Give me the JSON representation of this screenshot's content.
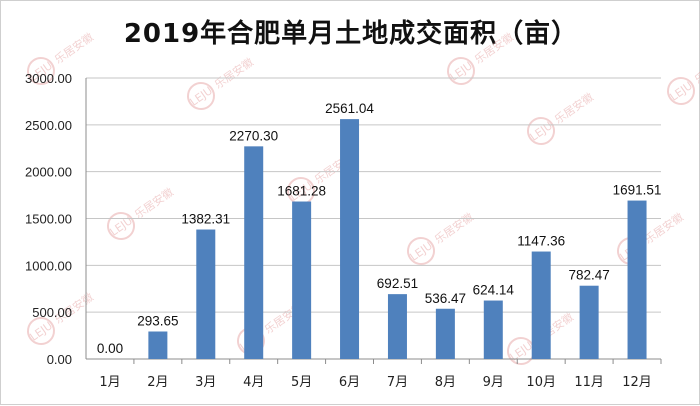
{
  "chart_data": {
    "type": "bar",
    "title": "2019年合肥单月土地成交面积（亩）",
    "categories": [
      "1月",
      "2月",
      "3月",
      "4月",
      "5月",
      "6月",
      "7月",
      "8月",
      "9月",
      "10月",
      "11月",
      "12月"
    ],
    "series": [
      {
        "values": [
          0.0,
          293.65,
          1382.31,
          2270.3,
          1681.28,
          2561.04,
          692.51,
          536.47,
          624.14,
          1147.36,
          782.47,
          1691.51
        ]
      }
    ],
    "data_labels": [
      "0.00",
      "293.65",
      "1382.31",
      "2270.30",
      "1681.28",
      "2561.04",
      "692.51",
      "536.47",
      "624.14",
      "1147.36",
      "782.47",
      "1691.51"
    ],
    "y_ticks": [
      "0.00",
      "500.00",
      "1000.00",
      "1500.00",
      "2000.00",
      "2500.00",
      "3000.00"
    ],
    "ylim": [
      0,
      3000
    ],
    "grid": true,
    "legend": "none",
    "bar_color": "#4f81bd",
    "grid_color": "#c6c6c6",
    "watermark": {
      "logo": "LEJU",
      "text": "乐居安徽",
      "color": "#e39a9a"
    }
  }
}
